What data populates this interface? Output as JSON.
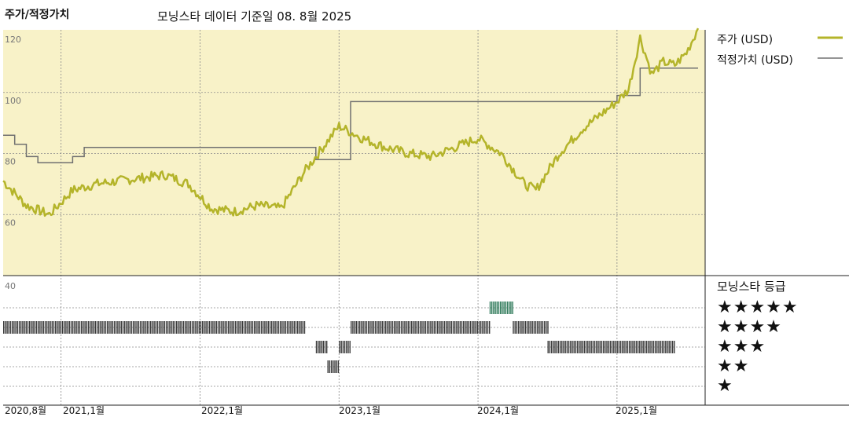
{
  "header": {
    "title": "주가/적정가치",
    "subtitle": "모닝스타 데이터 기준일 08. 8월 2025"
  },
  "legend": {
    "price_label": "주가 (USD)",
    "fair_label": "적정가치 (USD)",
    "rating_title": "모닝스타 등급",
    "stars": [
      "★★★★★",
      "★★★★",
      "★★★",
      "★★",
      "★"
    ]
  },
  "colors": {
    "price": "#b4b42a",
    "fair": "#707070",
    "panel_bg": "#f8f2c8",
    "bar_dark": "#3a3a3a",
    "bar_green": "#2f7a5a"
  },
  "chart_data": [
    {
      "type": "line",
      "title": "",
      "ylim": [
        40,
        122
      ],
      "y_ticks": [
        120,
        100,
        80,
        60,
        40
      ],
      "x_ticks": [
        "2020,8월",
        "2021,1월",
        "2022,1월",
        "2023,1월",
        "2024,1월",
        "2025,1월"
      ],
      "x_range": [
        "2020-08",
        "2025-08"
      ],
      "grid": true,
      "legend": "right",
      "series": [
        {
          "name": "주가 (USD)",
          "x": [
            "2020-08",
            "2020-10",
            "2020-12",
            "2021-01",
            "2021-02",
            "2021-04",
            "2021-06",
            "2021-08",
            "2021-10",
            "2021-12",
            "2022-02",
            "2022-04",
            "2022-06",
            "2022-08",
            "2022-10",
            "2022-12",
            "2023-01",
            "2023-02",
            "2023-03",
            "2023-05",
            "2023-07",
            "2023-09",
            "2023-11",
            "2024-01",
            "2024-03",
            "2024-05",
            "2024-06",
            "2024-08",
            "2024-10",
            "2024-12",
            "2025-01",
            "2025-02",
            "2025-03",
            "2025-04",
            "2025-05",
            "2025-06",
            "2025-07",
            "2025-08"
          ],
          "values": [
            71,
            63,
            60,
            64,
            68,
            70,
            71,
            72,
            73,
            70,
            62,
            61,
            63,
            62,
            74,
            84,
            89,
            87,
            85,
            82,
            80,
            79,
            82,
            85,
            80,
            70,
            68,
            80,
            88,
            94,
            97,
            101,
            118,
            106,
            110,
            109,
            113,
            121
          ]
        },
        {
          "name": "적정가치 (USD)",
          "x": [
            "2020-08",
            "2020-09",
            "2020-10",
            "2020-11",
            "2021-01",
            "2021-02",
            "2021-03",
            "2022-10",
            "2022-11",
            "2023-01",
            "2023-02",
            "2024-12",
            "2025-01",
            "2025-02",
            "2025-03",
            "2025-07",
            "2025-08"
          ],
          "values": [
            86,
            83,
            79,
            77,
            77,
            79,
            82,
            82,
            78,
            78,
            97,
            97,
            99,
            99,
            108,
            108,
            108
          ]
        }
      ]
    },
    {
      "type": "bar",
      "title": "모닝스타 등급",
      "y_levels": [
        "★★★★★",
        "★★★★",
        "★★★",
        "★★",
        "★"
      ],
      "periods": [
        {
          "start": "2020-08",
          "end": "2022-10",
          "stars": 4
        },
        {
          "start": "2022-11",
          "end": "2022-11",
          "stars": 3
        },
        {
          "start": "2022-12",
          "end": "2022-12",
          "stars": 2
        },
        {
          "start": "2023-01",
          "end": "2023-01",
          "stars": 3
        },
        {
          "start": "2023-02",
          "end": "2024-02",
          "stars": 4
        },
        {
          "start": "2024-02",
          "end": "2024-04",
          "stars": 5
        },
        {
          "start": "2024-04",
          "end": "2024-07",
          "stars": 4
        },
        {
          "start": "2024-07",
          "end": "2025-06",
          "stars": 3
        }
      ]
    }
  ]
}
